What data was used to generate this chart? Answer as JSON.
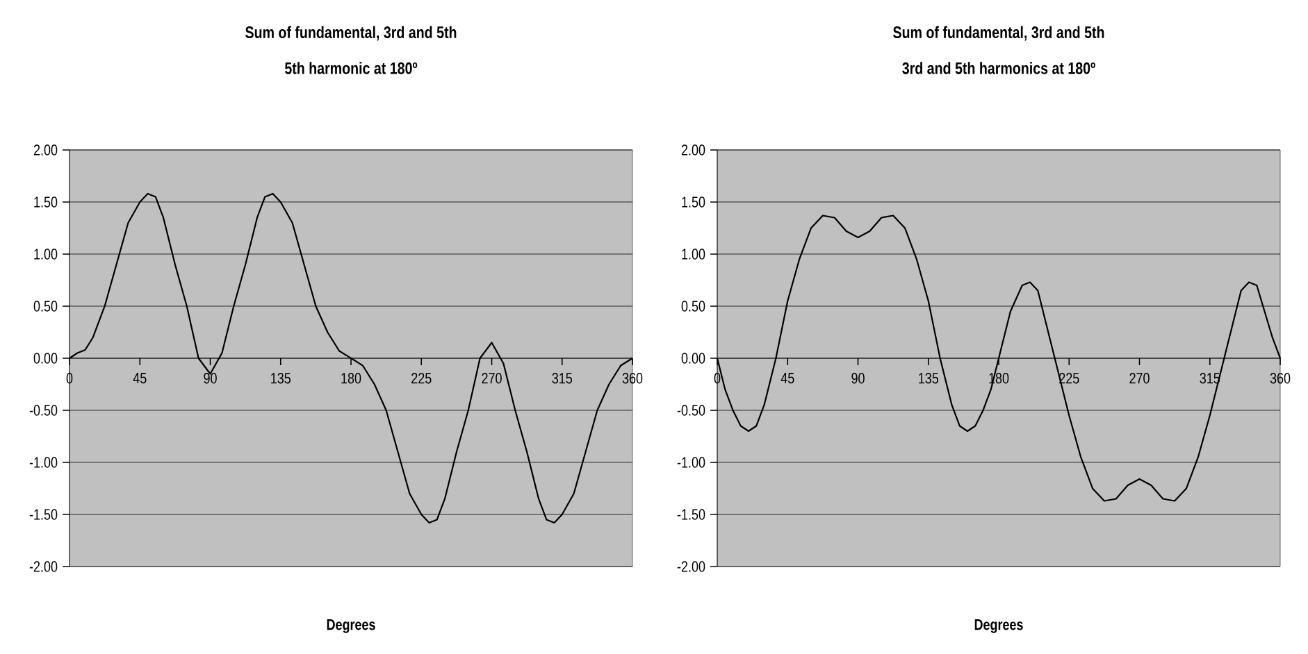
{
  "chart_data": [
    {
      "type": "line",
      "title": "Sum of fundamental, 3rd and 5th",
      "subtitle": "5th harmonic at 180º",
      "xlabel": "Degrees",
      "color": "#000000",
      "grid": "y",
      "x": [
        0,
        5,
        10,
        15,
        22.5,
        30,
        37.5,
        45,
        50,
        55,
        60,
        67.5,
        75,
        82.5,
        90,
        97.5,
        105,
        112.5,
        120,
        125,
        130,
        135,
        142.5,
        150,
        157.5,
        165,
        172.5,
        180,
        187.5,
        195,
        202.5,
        210,
        217.5,
        225,
        230,
        235,
        240,
        247.5,
        255,
        262.5,
        270,
        277.5,
        285,
        292.5,
        300,
        305,
        310,
        315,
        322.5,
        330,
        337.5,
        345,
        352.5,
        360
      ],
      "values": [
        0,
        0.05,
        0.08,
        0.2,
        0.5,
        0.9,
        1.3,
        1.5,
        1.58,
        1.55,
        1.35,
        0.9,
        0.5,
        0,
        -0.15,
        0.05,
        0.5,
        0.9,
        1.35,
        1.55,
        1.58,
        1.5,
        1.3,
        0.9,
        0.5,
        0.25,
        0.07,
        0,
        -0.07,
        -0.25,
        -0.5,
        -0.9,
        -1.3,
        -1.5,
        -1.58,
        -1.55,
        -1.35,
        -0.9,
        -0.5,
        0,
        0.15,
        -0.05,
        -0.5,
        -0.9,
        -1.35,
        -1.55,
        -1.58,
        -1.5,
        -1.3,
        -0.9,
        -0.5,
        -0.25,
        -0.07,
        0
      ],
      "xlim": [
        0,
        360
      ],
      "xticks": [
        0,
        45,
        90,
        135,
        180,
        225,
        270,
        315,
        360
      ],
      "ylim": [
        -2,
        2
      ],
      "yticks": [
        {
          "value": -2,
          "label": "-2.00"
        },
        {
          "value": -1.5,
          "label": "-1.50"
        },
        {
          "value": -1,
          "label": "-1.00"
        },
        {
          "value": -0.5,
          "label": "-0.50"
        },
        {
          "value": 0,
          "label": "0.00"
        },
        {
          "value": 0.5,
          "label": "0.50"
        },
        {
          "value": 1,
          "label": "1.00"
        },
        {
          "value": 1.5,
          "label": "1.50"
        },
        {
          "value": 2,
          "label": "2.00"
        }
      ]
    },
    {
      "type": "line",
      "title": "Sum of fundamental, 3rd and 5th",
      "subtitle": "3rd and 5th harmonics at 180º",
      "xlabel": "Degrees",
      "color": "#000000",
      "grid": "y",
      "x": [
        0,
        5,
        10,
        15,
        20,
        25,
        30,
        37.5,
        45,
        52.5,
        60,
        67.5,
        75,
        82.5,
        90,
        97.5,
        105,
        112.5,
        120,
        127.5,
        135,
        142.5,
        150,
        155,
        160,
        165,
        170,
        175,
        180,
        187.5,
        195,
        200,
        205,
        210,
        217.5,
        225,
        232.5,
        240,
        247.5,
        255,
        262.5,
        270,
        277.5,
        285,
        292.5,
        300,
        307.5,
        315,
        322.5,
        330,
        335,
        340,
        345,
        350,
        355,
        360
      ],
      "values": [
        0,
        -0.3,
        -0.5,
        -0.65,
        -0.7,
        -0.65,
        -0.45,
        0,
        0.55,
        0.95,
        1.25,
        1.37,
        1.35,
        1.22,
        1.16,
        1.22,
        1.35,
        1.37,
        1.25,
        0.95,
        0.55,
        0,
        -0.45,
        -0.65,
        -0.7,
        -0.65,
        -0.5,
        -0.3,
        0,
        0.45,
        0.7,
        0.73,
        0.65,
        0.35,
        -0.1,
        -0.55,
        -0.95,
        -1.25,
        -1.37,
        -1.35,
        -1.22,
        -1.16,
        -1.22,
        -1.35,
        -1.37,
        -1.25,
        -0.95,
        -0.55,
        -0.1,
        0.35,
        0.65,
        0.73,
        0.7,
        0.45,
        0.2,
        0
      ],
      "xlim": [
        0,
        360
      ],
      "xticks": [
        0,
        45,
        90,
        135,
        180,
        225,
        270,
        315,
        360
      ],
      "ylim": [
        -2,
        2
      ],
      "yticks": [
        {
          "value": -2,
          "label": "-2.00"
        },
        {
          "value": -1.5,
          "label": "-1.50"
        },
        {
          "value": -1,
          "label": "-1.00"
        },
        {
          "value": -0.5,
          "label": "-0.50"
        },
        {
          "value": 0,
          "label": "0.00"
        },
        {
          "value": 0.5,
          "label": "0.50"
        },
        {
          "value": 1,
          "label": "1.00"
        },
        {
          "value": 1.5,
          "label": "1.50"
        },
        {
          "value": 2,
          "label": "2.00"
        }
      ]
    }
  ]
}
